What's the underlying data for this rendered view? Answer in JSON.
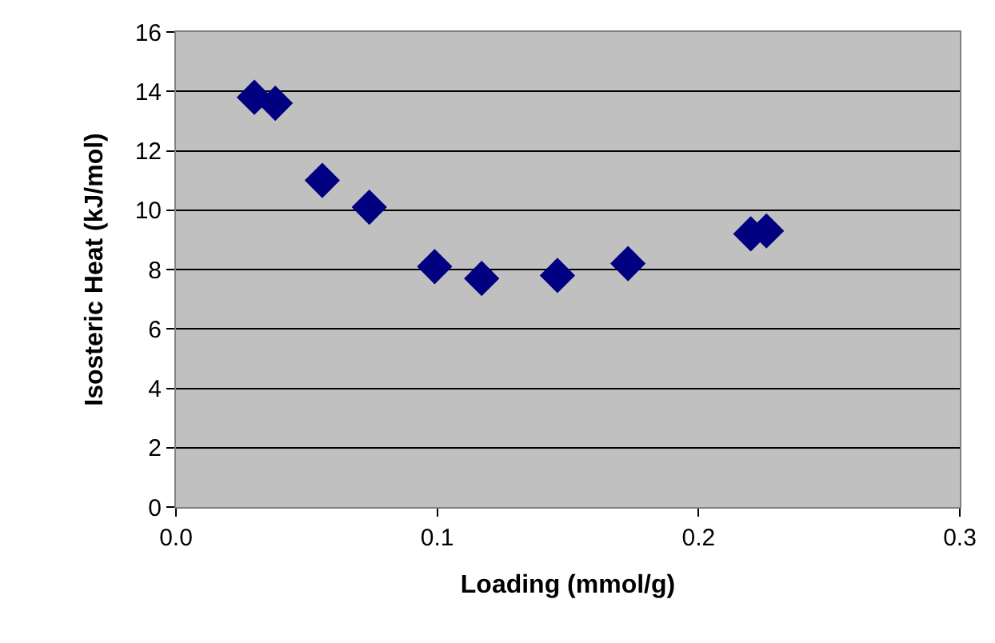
{
  "chart_data": {
    "type": "scatter",
    "xlabel": "Loading (mmol/g)",
    "ylabel": "Isosteric Heat (kJ/mol)",
    "x": [
      0.03,
      0.038,
      0.056,
      0.074,
      0.099,
      0.117,
      0.146,
      0.173,
      0.22,
      0.226
    ],
    "series": [
      {
        "color": "#000080",
        "values": [
          13.8,
          13.6,
          11.0,
          10.1,
          8.1,
          7.7,
          7.8,
          8.2,
          9.2,
          9.3
        ]
      }
    ],
    "xlim": [
      0,
      0.3
    ],
    "xticks": [
      {
        "value": 0,
        "label": "0.0"
      },
      0.1,
      0.2,
      0.3
    ],
    "ylim": [
      0,
      16
    ],
    "yticks": [
      0,
      2,
      4,
      6,
      8,
      10,
      12,
      14,
      16
    ],
    "grid": "y",
    "legend": false,
    "marker": "diamond"
  }
}
